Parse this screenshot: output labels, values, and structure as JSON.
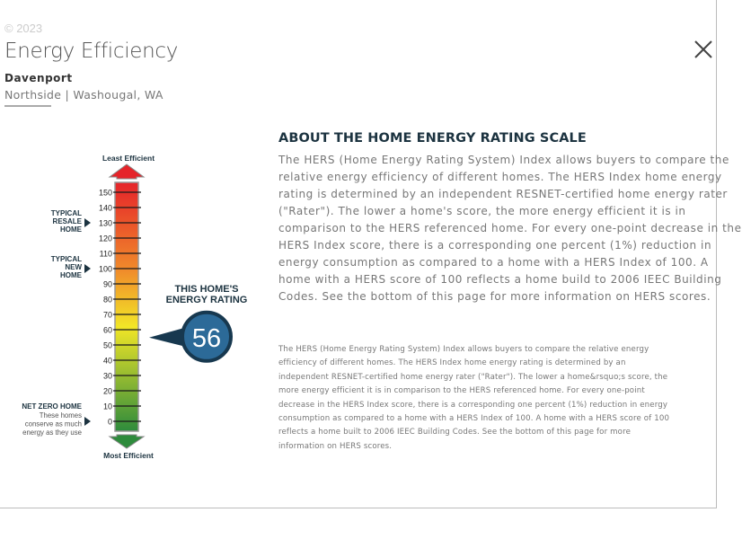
{
  "header": {
    "copyright": "© 2023",
    "title": "Energy Efficiency",
    "community": "Davenport",
    "location": "Northside | Washougal, WA"
  },
  "close_icon": "close-x-icon",
  "about": {
    "heading": "ABOUT THE HOME ENERGY RATING SCALE",
    "paragraph_lines": [
      "The HERS (Home Energy Rating System) Index allows buyers to compare the",
      "relative energy efficiency of different homes. The HERS Index home energy",
      "rating is determined by an independent RESNET-certified home energy rater",
      "(\"Rater\"). The lower a home's score, the more energy efficient it is in",
      "comparison to the HERS referenced home. For every one-point decrease in the",
      "HERS Index score, there is a corresponding one percent (1%) reduction in",
      "energy consumption as compared to a home with a HERS Index of 100. A",
      "home with a HERS score of 100 reflects a home build to 2006 IEEC Building",
      "Codes. See the bottom of this page for more information on HERS scores."
    ],
    "footnote_lines": [
      "The HERS (Home Energy Rating System) Index allows buyers to compare the relative energy",
      "efficiency of different homes. The HERS Index home energy rating is determined by an",
      "independent RESNET-certified home energy rater (\"Rater\"). The lower a home&rsquo;s score, the",
      "more energy efficient it is in comparison to the HERS referenced home. For every one-point",
      "decrease in the HERS Index score, there is a corresponding one percent (1%) reduction in energy",
      "consumption as compared to a home with a HERS Index of 100. A home with a HERS score of 100",
      "reflects a home built to 2006 IEEC Building Codes. See the bottom of this page for more",
      "information on HERS scores."
    ]
  },
  "gauge": {
    "top_label": "Least Efficient",
    "bottom_label": "Most Efficient",
    "scale_min": 0,
    "scale_max": 150,
    "tick_step": 10,
    "ticks": [
      "0",
      "10",
      "20",
      "30",
      "40",
      "50",
      "60",
      "70",
      "80",
      "90",
      "100",
      "110",
      "120",
      "130",
      "140",
      "150"
    ],
    "markers": [
      {
        "value": 130,
        "lines": [
          "TYPICAL",
          "RESALE",
          "HOME"
        ]
      },
      {
        "value": 100,
        "lines": [
          "TYPICAL",
          "NEW",
          "HOME"
        ]
      },
      {
        "value": 0,
        "title": "NET ZERO HOME",
        "lines": [
          "These homes",
          "conserve as much",
          "energy as they use"
        ]
      }
    ],
    "rating_label_lines": [
      "THIS HOME'S",
      "ENERGY RATING"
    ],
    "rating_value": 56,
    "rating_text": "56",
    "colors": {
      "red": "#e5242a",
      "orange": "#f08a2b",
      "yellow": "#f2e627",
      "green": "#2e8b3c",
      "badge": "#2c6a98",
      "badge_ring": "#17384f",
      "dark": "#1c3340"
    }
  }
}
